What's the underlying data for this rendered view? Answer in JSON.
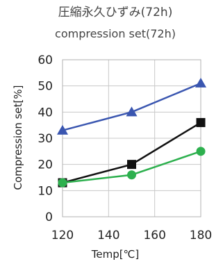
{
  "chart_data": {
    "type": "line",
    "title": "圧縮永久ひずみ(72h)",
    "subtitle": "compression set(72h)",
    "xlabel": "Temp[℃]",
    "ylabel": "Compression set[%]",
    "x": [
      120,
      150,
      180
    ],
    "xlim": [
      120,
      180
    ],
    "ylim": [
      0,
      60
    ],
    "xticks": [
      "120",
      "140",
      "160",
      "180"
    ],
    "yticks": [
      "0",
      "10",
      "20",
      "30",
      "40",
      "50",
      "60"
    ],
    "grid": true,
    "legend": "none",
    "series": [
      {
        "marker": "triangle",
        "color": "#3a56b0",
        "values": [
          33,
          40,
          51
        ]
      },
      {
        "marker": "square",
        "color": "#111111",
        "values": [
          13,
          20,
          36
        ]
      },
      {
        "marker": "circle",
        "color": "#2db04e",
        "values": [
          13,
          16,
          25
        ]
      }
    ]
  }
}
